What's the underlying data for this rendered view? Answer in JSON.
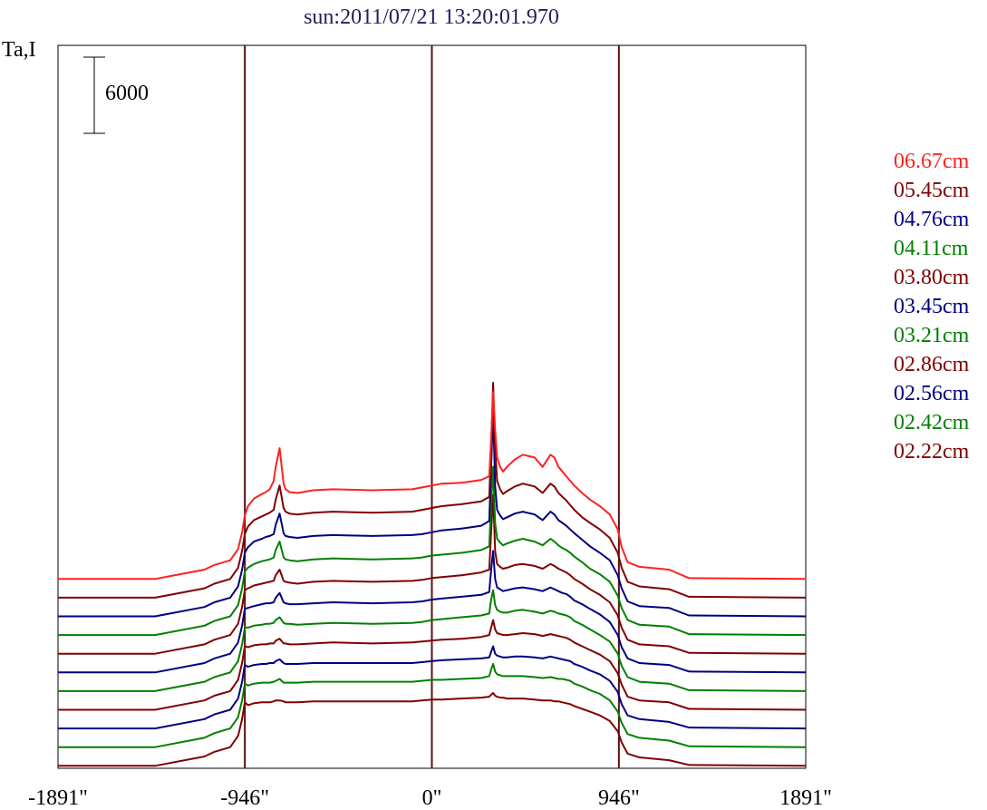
{
  "chart_data": {
    "type": "line",
    "title": "sun:2011/07/21 13:20:01.970",
    "ylabel": "Ta,I",
    "scale_bar_label": "6000",
    "scale_bar_value": 6000,
    "xlim": [
      -1891,
      1891
    ],
    "x_ticks": [
      {
        "value": -1891,
        "label": "-1891\""
      },
      {
        "value": -946,
        "label": "-946\""
      },
      {
        "value": 0,
        "label": "0\""
      },
      {
        "value": 946,
        "label": "946\""
      },
      {
        "value": 1891,
        "label": "1891\""
      }
    ],
    "vlines": [
      -946,
      0,
      946
    ],
    "vline_color": "#5a1010",
    "x": [
      -1891,
      -1400,
      -1150,
      -1100,
      -1020,
      -980,
      -960,
      -946,
      -930,
      -900,
      -860,
      -840,
      -820,
      -800,
      -790,
      -770,
      -750,
      -740,
      -720,
      -680,
      -600,
      -500,
      -300,
      -100,
      -50,
      0,
      50,
      150,
      250,
      290,
      300,
      310,
      320,
      330,
      345,
      360,
      380,
      420,
      460,
      520,
      560,
      600,
      620,
      640,
      660,
      680,
      700,
      720,
      760,
      800,
      850,
      900,
      940,
      960,
      990,
      1050,
      1200,
      1300,
      1891
    ],
    "series": [
      {
        "name": "06.67cm",
        "color": "#ff2020",
        "offset": 19,
        "values": [
          0,
          0,
          1,
          1.5,
          2,
          3.2,
          5,
          6.8,
          7.8,
          8.6,
          9.1,
          9.3,
          9.6,
          10.5,
          12,
          14,
          10.2,
          9.6,
          9.3,
          9.2,
          9.5,
          9.6,
          9.5,
          9.6,
          9.8,
          10,
          10.2,
          10.3,
          10.6,
          11,
          15,
          20,
          16,
          13,
          12,
          11.5,
          12,
          12.8,
          13.3,
          13,
          12,
          13.3,
          13,
          12,
          11.5,
          11,
          10.5,
          10,
          9.2,
          8.5,
          7.8,
          6.9,
          5.3,
          3.4,
          1.8,
          1.3,
          1.0,
          0.1,
          0
        ]
      },
      {
        "name": "05.45cm",
        "color": "#800000",
        "offset": 17,
        "values": [
          0,
          0,
          1,
          1.5,
          2,
          3.2,
          5,
          6.8,
          7.6,
          8.3,
          8.7,
          8.9,
          9.1,
          9.4,
          10.5,
          12,
          9.6,
          9.2,
          9.0,
          8.9,
          9.1,
          9.2,
          9.1,
          9.2,
          9.4,
          9.6,
          9.8,
          10.0,
          10.3,
          10.8,
          16,
          23,
          16,
          12.5,
          11.6,
          11.1,
          11.4,
          11.9,
          12.2,
          11.9,
          11.2,
          12.2,
          11.9,
          11.2,
          10.8,
          10.4,
          9.9,
          9.4,
          8.6,
          8.0,
          7.3,
          6.4,
          4.8,
          3.2,
          1.7,
          1.2,
          0.9,
          0.1,
          0
        ]
      },
      {
        "name": "04.76cm",
        "color": "#000080",
        "offset": 15,
        "values": [
          0,
          0,
          1,
          1.5,
          2,
          3.2,
          5,
          6.8,
          7.4,
          8.0,
          8.3,
          8.5,
          8.6,
          8.8,
          9.8,
          11,
          8.9,
          8.6,
          8.5,
          8.4,
          8.6,
          8.7,
          8.6,
          8.7,
          8.8,
          9.0,
          9.2,
          9.4,
          9.7,
          10.2,
          16,
          22,
          14,
          11.4,
          10.8,
          10.4,
          10.6,
          11.0,
          11.2,
          10.9,
          10.3,
          11.2,
          10.9,
          10.3,
          10.0,
          9.7,
          9.3,
          8.9,
          8.2,
          7.5,
          6.8,
          6.0,
          4.4,
          3.0,
          1.6,
          1.1,
          0.9,
          0.1,
          0
        ]
      },
      {
        "name": "04.11cm",
        "color": "#008000",
        "offset": 13,
        "values": [
          0,
          0,
          1,
          1.5,
          2,
          3.2,
          5,
          6.8,
          7.2,
          7.6,
          7.9,
          8.0,
          8.1,
          8.3,
          9.1,
          10,
          8.3,
          8.1,
          8.0,
          7.9,
          8.1,
          8.2,
          8.1,
          8.2,
          8.3,
          8.5,
          8.6,
          8.8,
          9.1,
          9.5,
          14,
          18,
          12,
          10.3,
          9.9,
          9.6,
          9.8,
          10.1,
          10.3,
          10.0,
          9.6,
          10.3,
          10.0,
          9.6,
          9.3,
          9.1,
          8.8,
          8.4,
          7.8,
          7.1,
          6.5,
          5.7,
          4.2,
          2.9,
          1.6,
          1.1,
          0.9,
          0.1,
          0
        ]
      },
      {
        "name": "03.80cm",
        "color": "#800000",
        "offset": 11,
        "values": [
          0,
          0,
          1,
          1.5,
          2,
          3.2,
          5,
          6.8,
          7.0,
          7.3,
          7.5,
          7.6,
          7.7,
          7.8,
          8.4,
          9,
          7.8,
          7.7,
          7.6,
          7.5,
          7.7,
          7.8,
          7.7,
          7.8,
          7.9,
          8.1,
          8.2,
          8.4,
          8.7,
          9.0,
          13,
          17,
          11,
          9.6,
          9.3,
          9.1,
          9.2,
          9.5,
          9.6,
          9.4,
          9.1,
          9.6,
          9.4,
          9.1,
          8.9,
          8.7,
          8.4,
          8.0,
          7.5,
          6.9,
          6.3,
          5.5,
          4.1,
          2.8,
          1.5,
          1.0,
          0.8,
          0.1,
          0
        ]
      },
      {
        "name": "03.45cm",
        "color": "#000080",
        "offset": 9,
        "values": [
          0,
          0,
          1,
          1.5,
          2,
          3.2,
          5,
          6.8,
          6.9,
          7.1,
          7.3,
          7.4,
          7.4,
          7.5,
          8.0,
          8.5,
          7.5,
          7.4,
          7.3,
          7.3,
          7.4,
          7.5,
          7.4,
          7.5,
          7.6,
          7.8,
          7.9,
          8.1,
          8.3,
          8.6,
          11,
          13,
          10,
          9.1,
          8.9,
          8.7,
          8.8,
          9.0,
          9.1,
          8.9,
          8.7,
          9.1,
          8.9,
          8.7,
          8.5,
          8.4,
          8.1,
          7.7,
          7.3,
          6.8,
          6.2,
          5.4,
          4.0,
          2.7,
          1.5,
          1.0,
          0.8,
          0.1,
          0
        ]
      },
      {
        "name": "03.21cm",
        "color": "#008000",
        "offset": 7,
        "values": [
          0,
          0,
          1,
          1.5,
          2,
          3.2,
          5,
          6.8,
          6.8,
          7.0,
          7.1,
          7.2,
          7.2,
          7.3,
          7.6,
          7.9,
          7.3,
          7.2,
          7.2,
          7.1,
          7.2,
          7.3,
          7.2,
          7.3,
          7.4,
          7.6,
          7.7,
          7.9,
          8.1,
          8.3,
          9.8,
          10.8,
          9.2,
          8.7,
          8.5,
          8.4,
          8.4,
          8.6,
          8.7,
          8.5,
          8.3,
          8.6,
          8.5,
          8.3,
          8.2,
          8.1,
          7.9,
          7.5,
          7.1,
          6.6,
          6.0,
          5.3,
          4.0,
          2.7,
          1.5,
          1.0,
          0.8,
          0.1,
          0
        ]
      },
      {
        "name": "02.86cm",
        "color": "#800000",
        "offset": 5,
        "values": [
          0,
          0,
          1,
          1.5,
          2,
          3.2,
          5,
          6.8,
          6.7,
          6.9,
          7.0,
          7.0,
          7.1,
          7.1,
          7.4,
          7.6,
          7.1,
          7.1,
          7.0,
          7.0,
          7.1,
          7.2,
          7.1,
          7.2,
          7.3,
          7.4,
          7.5,
          7.6,
          7.8,
          8.0,
          8.8,
          9.6,
          8.6,
          8.2,
          8.1,
          8.0,
          8.0,
          8.1,
          8.2,
          8.1,
          7.9,
          8.1,
          8.0,
          7.9,
          7.8,
          7.7,
          7.5,
          7.2,
          6.8,
          6.4,
          5.9,
          5.2,
          3.9,
          2.7,
          1.4,
          1.0,
          0.8,
          0.1,
          0
        ]
      },
      {
        "name": "02.56cm",
        "color": "#000080",
        "offset": 3,
        "values": [
          0,
          0,
          1,
          1.5,
          2,
          3.2,
          5,
          6.8,
          6.6,
          6.8,
          6.9,
          6.9,
          7.0,
          7.0,
          7.2,
          7.4,
          7.0,
          6.9,
          6.9,
          6.9,
          7.0,
          7.0,
          7.0,
          7.0,
          7.1,
          7.2,
          7.3,
          7.4,
          7.5,
          7.6,
          8.2,
          8.8,
          8.0,
          7.8,
          7.7,
          7.6,
          7.6,
          7.7,
          7.7,
          7.6,
          7.5,
          7.7,
          7.6,
          7.5,
          7.4,
          7.3,
          7.2,
          6.9,
          6.6,
          6.2,
          5.8,
          5.1,
          3.9,
          2.6,
          1.4,
          1.0,
          0.7,
          0.1,
          0
        ]
      },
      {
        "name": "02.42cm",
        "color": "#008000",
        "offset": 1,
        "values": [
          0,
          0,
          1,
          1.5,
          2,
          3.2,
          5,
          6.8,
          6.6,
          6.8,
          6.9,
          6.9,
          6.9,
          7.0,
          7.1,
          7.3,
          6.9,
          6.9,
          6.9,
          6.9,
          7.0,
          7.0,
          7.0,
          7.0,
          7.1,
          7.2,
          7.2,
          7.3,
          7.4,
          7.6,
          8.3,
          8.9,
          8.1,
          7.8,
          7.7,
          7.6,
          7.6,
          7.6,
          7.6,
          7.5,
          7.4,
          7.5,
          7.4,
          7.3,
          7.3,
          7.2,
          7.1,
          6.8,
          6.5,
          6.1,
          5.7,
          5.0,
          3.8,
          2.6,
          1.4,
          1.0,
          0.7,
          0.1,
          0
        ]
      },
      {
        "name": "02.22cm",
        "color": "#800000",
        "offset": -1,
        "values": [
          0,
          0,
          1,
          1.5,
          2,
          3.2,
          5,
          6.8,
          6.5,
          6.7,
          6.8,
          6.8,
          6.8,
          6.9,
          7.0,
          7.0,
          6.9,
          6.8,
          6.8,
          6.8,
          6.9,
          6.9,
          6.9,
          6.9,
          7.0,
          7.1,
          7.1,
          7.2,
          7.3,
          7.4,
          7.6,
          7.8,
          7.5,
          7.4,
          7.3,
          7.3,
          7.2,
          7.2,
          7.2,
          7.1,
          7.0,
          7.0,
          6.9,
          6.9,
          6.8,
          6.7,
          6.6,
          6.4,
          6.1,
          5.8,
          5.4,
          4.8,
          3.7,
          2.5,
          1.3,
          0.9,
          0.6,
          0.1,
          0
        ]
      }
    ]
  }
}
